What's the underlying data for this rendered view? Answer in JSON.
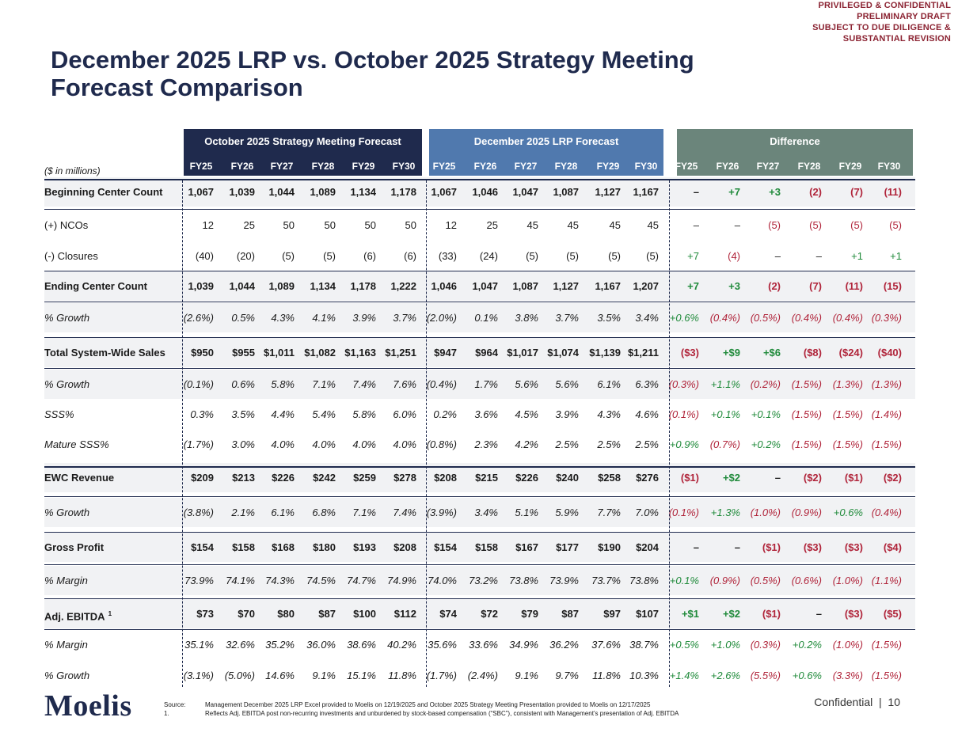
{
  "stamp": [
    "PRIVILEGED & CONFIDENTIAL",
    "PRELIMINARY DRAFT",
    "SUBJECT TO DUE DILIGENCE &",
    "SUBSTANTIAL REVISION"
  ],
  "title": "December 2025 LRP vs. October 2025 Strategy Meeting Forecast Comparison",
  "units_label": "($ in millions)",
  "groups": {
    "oct": "October 2025 Strategy Meeting Forecast",
    "dec": "December 2025 LRP Forecast",
    "diff": "Difference"
  },
  "years": [
    "FY25",
    "FY26",
    "FY27",
    "FY28",
    "FY29",
    "FY30"
  ],
  "rows": [
    {
      "label": "Beginning Center Count",
      "style": "bold",
      "oct": [
        "1,067",
        "1,039",
        "1,044",
        "1,089",
        "1,134",
        "1,178"
      ],
      "dec": [
        "1,067",
        "1,046",
        "1,047",
        "1,087",
        "1,127",
        "1,167"
      ],
      "diff": [
        "–",
        "+7",
        "+3",
        "(2)",
        "(7)",
        "(11)"
      ]
    },
    {
      "label": "(+) NCOs",
      "style": "plain",
      "oct": [
        "12",
        "25",
        "50",
        "50",
        "50",
        "50"
      ],
      "dec": [
        "12",
        "25",
        "45",
        "45",
        "45",
        "45"
      ],
      "diff": [
        "–",
        "–",
        "(5)",
        "(5)",
        "(5)",
        "(5)"
      ]
    },
    {
      "label": "(-) Closures",
      "style": "plain",
      "oct": [
        "(40)",
        "(20)",
        "(5)",
        "(5)",
        "(6)",
        "(6)"
      ],
      "dec": [
        "(33)",
        "(24)",
        "(5)",
        "(5)",
        "(5)",
        "(5)"
      ],
      "diff": [
        "+7",
        "(4)",
        "–",
        "–",
        "+1",
        "+1"
      ]
    },
    {
      "label": "Ending Center Count",
      "style": "bold",
      "oct": [
        "1,039",
        "1,044",
        "1,089",
        "1,134",
        "1,178",
        "1,222"
      ],
      "dec": [
        "1,046",
        "1,047",
        "1,087",
        "1,127",
        "1,167",
        "1,207"
      ],
      "diff": [
        "+7",
        "+3",
        "(2)",
        "(7)",
        "(11)",
        "(15)"
      ]
    },
    {
      "label": "% Growth",
      "style": "ital",
      "oct": [
        "(2.6%)",
        "0.5%",
        "4.3%",
        "4.1%",
        "3.9%",
        "3.7%"
      ],
      "dec": [
        "(2.0%)",
        "0.1%",
        "3.8%",
        "3.7%",
        "3.5%",
        "3.4%"
      ],
      "diff": [
        "+0.6%",
        "(0.4%)",
        "(0.5%)",
        "(0.4%)",
        "(0.4%)",
        "(0.3%)"
      ]
    },
    {
      "label": "Total System-Wide Sales",
      "style": "bold",
      "oct": [
        "$950",
        "$955",
        "$1,011",
        "$1,082",
        "$1,163",
        "$1,251"
      ],
      "dec": [
        "$947",
        "$964",
        "$1,017",
        "$1,074",
        "$1,139",
        "$1,211"
      ],
      "diff": [
        "($3)",
        "+$9",
        "+$6",
        "($8)",
        "($24)",
        "($40)"
      ]
    },
    {
      "label": "% Growth",
      "style": "ital",
      "oct": [
        "(0.1%)",
        "0.6%",
        "5.8%",
        "7.1%",
        "7.4%",
        "7.6%"
      ],
      "dec": [
        "(0.4%)",
        "1.7%",
        "5.6%",
        "5.6%",
        "6.1%",
        "6.3%"
      ],
      "diff": [
        "(0.3%)",
        "+1.1%",
        "(0.2%)",
        "(1.5%)",
        "(1.3%)",
        "(1.3%)"
      ]
    },
    {
      "label": "SSS%",
      "style": "ital",
      "oct": [
        "0.3%",
        "3.5%",
        "4.4%",
        "5.4%",
        "5.8%",
        "6.0%"
      ],
      "dec": [
        "0.2%",
        "3.6%",
        "4.5%",
        "3.9%",
        "4.3%",
        "4.6%"
      ],
      "diff": [
        "(0.1%)",
        "+0.1%",
        "+0.1%",
        "(1.5%)",
        "(1.5%)",
        "(1.4%)"
      ]
    },
    {
      "label": "Mature SSS%",
      "style": "ital",
      "oct": [
        "(1.7%)",
        "3.0%",
        "4.0%",
        "4.0%",
        "4.0%",
        "4.0%"
      ],
      "dec": [
        "(0.8%)",
        "2.3%",
        "4.2%",
        "2.5%",
        "2.5%",
        "2.5%"
      ],
      "diff": [
        "+0.9%",
        "(0.7%)",
        "+0.2%",
        "(1.5%)",
        "(1.5%)",
        "(1.5%)"
      ]
    },
    {
      "label": "EWC Revenue",
      "style": "bold",
      "oct": [
        "$209",
        "$213",
        "$226",
        "$242",
        "$259",
        "$278"
      ],
      "dec": [
        "$208",
        "$215",
        "$226",
        "$240",
        "$258",
        "$276"
      ],
      "diff": [
        "($1)",
        "+$2",
        "–",
        "($2)",
        "($1)",
        "($2)"
      ]
    },
    {
      "label": "% Growth",
      "style": "ital",
      "oct": [
        "(3.8%)",
        "2.1%",
        "6.1%",
        "6.8%",
        "7.1%",
        "7.4%"
      ],
      "dec": [
        "(3.9%)",
        "3.4%",
        "5.1%",
        "5.9%",
        "7.7%",
        "7.0%"
      ],
      "diff": [
        "(0.1%)",
        "+1.3%",
        "(1.0%)",
        "(0.9%)",
        "+0.6%",
        "(0.4%)"
      ]
    },
    {
      "label": "Gross Profit",
      "style": "bold",
      "oct": [
        "$154",
        "$158",
        "$168",
        "$180",
        "$193",
        "$208"
      ],
      "dec": [
        "$154",
        "$158",
        "$167",
        "$177",
        "$190",
        "$204"
      ],
      "diff": [
        "–",
        "–",
        "($1)",
        "($3)",
        "($3)",
        "($4)"
      ]
    },
    {
      "label": "% Margin",
      "style": "ital",
      "oct": [
        "73.9%",
        "74.1%",
        "74.3%",
        "74.5%",
        "74.7%",
        "74.9%"
      ],
      "dec": [
        "74.0%",
        "73.2%",
        "73.8%",
        "73.9%",
        "73.7%",
        "73.8%"
      ],
      "diff": [
        "+0.1%",
        "(0.9%)",
        "(0.5%)",
        "(0.6%)",
        "(1.0%)",
        "(1.1%)"
      ]
    },
    {
      "label": "Adj. EBITDA",
      "sup": "1",
      "style": "bold",
      "oct": [
        "$73",
        "$70",
        "$80",
        "$87",
        "$100",
        "$112"
      ],
      "dec": [
        "$74",
        "$72",
        "$79",
        "$87",
        "$97",
        "$107"
      ],
      "diff": [
        "+$1",
        "+$2",
        "($1)",
        "–",
        "($3)",
        "($5)"
      ]
    },
    {
      "label": "% Margin",
      "style": "ital",
      "oct": [
        "35.1%",
        "32.6%",
        "35.2%",
        "36.0%",
        "38.6%",
        "40.2%"
      ],
      "dec": [
        "35.6%",
        "33.6%",
        "34.9%",
        "36.2%",
        "37.6%",
        "38.7%"
      ],
      "diff": [
        "+0.5%",
        "+1.0%",
        "(0.3%)",
        "+0.2%",
        "(1.0%)",
        "(1.5%)"
      ]
    },
    {
      "label": "% Growth",
      "style": "ital",
      "oct": [
        "(3.1%)",
        "(5.0%)",
        "14.6%",
        "9.1%",
        "15.1%",
        "11.8%"
      ],
      "dec": [
        "(1.7%)",
        "(2.4%)",
        "9.1%",
        "9.7%",
        "11.8%",
        "10.3%"
      ],
      "diff": [
        "+1.4%",
        "+2.6%",
        "(5.5%)",
        "+0.6%",
        "(3.3%)",
        "(1.5%)"
      ]
    }
  ],
  "logo": "Moelis",
  "footnotes": [
    {
      "key": "Source:",
      "text": "Management December 2025 LRP Excel provided to Moelis on 12/19/2025 and October 2025 Strategy Meeting Presentation provided to Moelis on 12/17/2025"
    },
    {
      "key": "1.",
      "text": "Reflects Adj. EBITDA post non-recurring investments and unburdened by stock-based compensation (“SBC”), consistent with Management’s presentation of Adj. EBITDA"
    }
  ],
  "page_footer": {
    "label": "Confidential",
    "separator": "|",
    "page": "10"
  },
  "colors": {
    "navy": "#1f2a4d",
    "blue": "#5079ae",
    "green_gray": "#6b857b",
    "neg": "#b0243a",
    "pos": "#1f8a3a",
    "stamp": "#8b2332"
  }
}
